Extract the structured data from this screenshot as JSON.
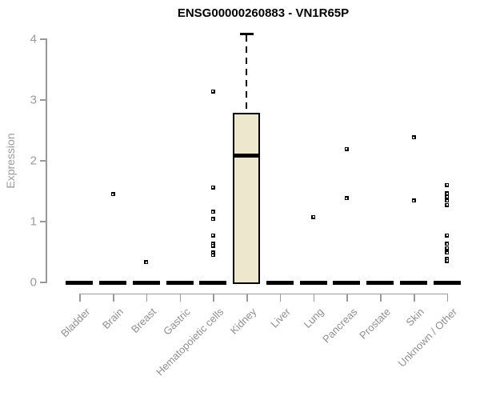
{
  "chart_data": {
    "type": "boxplot",
    "title": "ENSG00000260883 - VN1R65P",
    "ylabel": "Expression",
    "xlabel": "",
    "ylim": [
      0,
      4
    ],
    "yticks": [
      0,
      1,
      2,
      3,
      4
    ],
    "grid": false,
    "legend": "none",
    "categories": [
      "Bladder",
      "Brain",
      "Breast",
      "Gastric",
      "Hematopoietic cells",
      "Kidney",
      "Liver",
      "Lung",
      "Pancreas",
      "Prostate",
      "Skin",
      "Unknown / Other"
    ],
    "boxes": [
      {
        "category": "Bladder",
        "median": 0
      },
      {
        "category": "Brain",
        "median": 0
      },
      {
        "category": "Breast",
        "median": 0
      },
      {
        "category": "Gastric",
        "median": 0
      },
      {
        "category": "Hematopoietic cells",
        "median": 0
      },
      {
        "category": "Kidney",
        "median": 2.07,
        "q1": 0,
        "q3": 2.78,
        "whisker_low": 0,
        "whisker_high": 4.09
      },
      {
        "category": "Liver",
        "median": 0
      },
      {
        "category": "Lung",
        "median": 0
      },
      {
        "category": "Pancreas",
        "median": 0
      },
      {
        "category": "Prostate",
        "median": 0
      },
      {
        "category": "Skin",
        "median": 0
      },
      {
        "category": "Unknown / Other",
        "median": 0
      }
    ],
    "outliers": [
      {
        "category": "Brain",
        "values": [
          1.44
        ]
      },
      {
        "category": "Breast",
        "values": [
          0.32
        ]
      },
      {
        "category": "Hematopoietic cells",
        "values": [
          3.13,
          1.55,
          1.15,
          1.03,
          0.76,
          0.62,
          0.59,
          0.48,
          0.44
        ]
      },
      {
        "category": "Lung",
        "values": [
          1.06
        ]
      },
      {
        "category": "Pancreas",
        "values": [
          2.18,
          1.37
        ]
      },
      {
        "category": "Skin",
        "values": [
          2.37,
          1.33
        ]
      },
      {
        "category": "Unknown / Other",
        "values": [
          1.59,
          1.45,
          1.39,
          1.33,
          1.26,
          0.76,
          0.62,
          0.55,
          0.48,
          0.37,
          0.34
        ]
      }
    ],
    "colors": {
      "box_fill": "#EDE7CD",
      "box_border": "#000000",
      "median": "#000000",
      "point": "#000000",
      "axis": "#999999",
      "tick_label": "#9a9a9a",
      "title": "#000000",
      "background": "#ffffff"
    }
  }
}
